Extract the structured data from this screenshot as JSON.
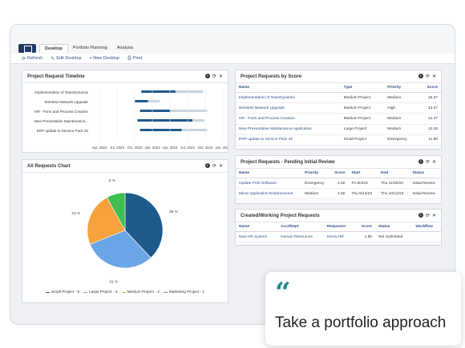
{
  "tabs": [
    {
      "label": "Desktop",
      "active": true
    },
    {
      "label": "Portfolio Planning",
      "active": false
    },
    {
      "label": "Analysis",
      "active": false
    }
  ],
  "toolbar": {
    "refresh": "Refresh",
    "edit_desktop": "Edit Desktop",
    "new_desktop": "+ New Desktop",
    "print": "Print"
  },
  "timeline": {
    "title": "Project Request Timeline",
    "rows": [
      {
        "label": "Implementation of TeamDynamix",
        "start": 0.38,
        "end": 0.85,
        "fill": 0.55
      },
      {
        "label": "Wireless Network Upgrade",
        "start": 0.33,
        "end": 0.52,
        "fill": 0.52
      },
      {
        "label": "HR - Form and Process Creation",
        "start": 0.37,
        "end": 0.88,
        "fill": 0.45
      },
      {
        "label": "New Preventative Maintenance...",
        "start": 0.35,
        "end": 0.86,
        "fill": 0.82
      },
      {
        "label": "ERP update to Service Pack 20",
        "start": 0.37,
        "end": 0.88,
        "fill": 0.62
      }
    ],
    "axis": [
      "Apr, 2023",
      "Jul, 2023",
      "Oct, 2023",
      "Jan, 2024",
      "Apr, 2024",
      "Jul, 2024",
      "Oct, 2024",
      "Jan, 2025"
    ]
  },
  "pie": {
    "title": "All Requests Chart",
    "chart_data": {
      "type": "pie",
      "slices": [
        {
          "name": "Small Project",
          "count": 5,
          "percent": 38,
          "color": "#1f5a8c"
        },
        {
          "name": "Large Project",
          "count": 4,
          "percent": 31,
          "color": "#6aa6e6"
        },
        {
          "name": "Medium Project",
          "count": 3,
          "percent": 23,
          "color": "#f5a23c"
        },
        {
          "name": "Marketing Project",
          "count": 1,
          "percent": 8,
          "color": "#3fbf4f"
        }
      ],
      "labels": [
        "38 %",
        "31 %",
        "23 %",
        "8 %"
      ],
      "legend": [
        "Small Project - 5",
        "Large Project - 4",
        "Medium Project - 3",
        "Marketing Project - 1"
      ]
    }
  },
  "score": {
    "title": "Project Requests by Score",
    "columns": [
      "Name",
      "Type",
      "Priority",
      "Score"
    ],
    "rows": [
      [
        "Implementation of TeamDynamix",
        "Medium Project",
        "Medium",
        "16.27"
      ],
      [
        "Wireless Network Upgrade",
        "Medium Project",
        "High",
        "13.27"
      ],
      [
        "HR - Form and Process Creation",
        "Medium Project",
        "Medium",
        "12.37"
      ],
      [
        "New Preventative Maintenance Application",
        "Large Project",
        "Medium",
        "12.28"
      ],
      [
        "ERP update to Service Pack 20",
        "Small Project",
        "Emergency",
        "11.90"
      ]
    ]
  },
  "pending": {
    "title": "Project Requests - Pending Initial Review",
    "columns": [
      "Name",
      "Priority",
      "Score",
      "Start",
      "End",
      "Status"
    ],
    "rows": [
      [
        "Update Print Software",
        "Emergency",
        "1.50",
        "Fri 8/4/23",
        "Thu 11/30/23",
        "Initial Review"
      ],
      [
        "Minor Application Enhancement",
        "Medium",
        "1.50",
        "Thu 9/14/23",
        "Thu 10/12/23",
        "Initial Review"
      ]
    ]
  },
  "working": {
    "title": "Created/Working Project Requests",
    "columns": [
      "Name",
      "Acct/Dept",
      "Requestor",
      "Score",
      "Status",
      "Workflow"
    ],
    "rows": [
      [
        "New HR System",
        "Human Resources",
        "Henry HR",
        "1.50",
        "Not Submitted",
        ""
      ]
    ]
  },
  "quote": {
    "mark": "“",
    "text": "Take a portfolio approach"
  }
}
